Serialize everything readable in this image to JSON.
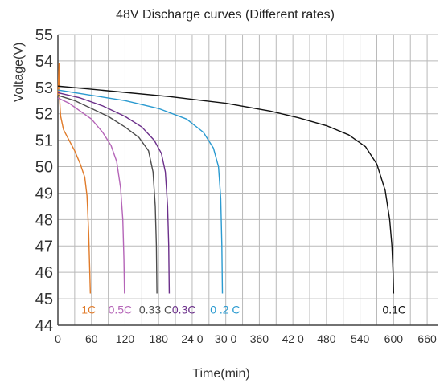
{
  "chart_data": {
    "type": "line",
    "title": "48V Discharge curves (Different rates)",
    "xlabel": "Time(min)",
    "ylabel": "Voltage(V)",
    "xlim": [
      0,
      680
    ],
    "ylim": [
      44,
      55
    ],
    "x_tick_labels": [
      "0",
      "60",
      "120",
      "180",
      "24 0",
      "30 0",
      "360",
      "42 0",
      "480",
      "540",
      "600",
      "660"
    ],
    "x_tick_values": [
      0,
      60,
      120,
      180,
      240,
      300,
      360,
      420,
      480,
      540,
      600,
      660
    ],
    "y_tick_labels": [
      "44",
      "45",
      "46",
      "47",
      "48",
      "49",
      "50",
      "51",
      "52",
      "53",
      "54",
      "55"
    ],
    "y_tick_values": [
      44,
      45,
      46,
      47,
      48,
      49,
      50,
      51,
      52,
      53,
      54,
      55
    ],
    "x_grid_step": 30,
    "grid": true,
    "series": [
      {
        "name": "1C",
        "color": "#e07b2a",
        "points": [
          [
            0,
            52.7
          ],
          [
            2,
            53.9
          ],
          [
            3,
            52.6
          ],
          [
            4,
            52.2
          ],
          [
            5,
            51.9
          ],
          [
            6,
            51.8
          ],
          [
            10,
            51.4
          ],
          [
            20,
            51.0
          ],
          [
            30,
            50.6
          ],
          [
            40,
            50.1
          ],
          [
            48,
            49.6
          ],
          [
            52,
            48.9
          ],
          [
            55,
            47.5
          ],
          [
            57,
            46.0
          ],
          [
            58,
            45.2
          ]
        ]
      },
      {
        "name": "0.5C",
        "color": "#b565b8",
        "points": [
          [
            0,
            52.6
          ],
          [
            20,
            52.4
          ],
          [
            40,
            52.1
          ],
          [
            60,
            51.8
          ],
          [
            80,
            51.3
          ],
          [
            95,
            50.8
          ],
          [
            105,
            50.2
          ],
          [
            112,
            49.2
          ],
          [
            116,
            48.0
          ],
          [
            118,
            46.5
          ],
          [
            119,
            45.2
          ]
        ]
      },
      {
        "name": "0.33 C",
        "color": "#4d4d4d",
        "points": [
          [
            0,
            52.7
          ],
          [
            30,
            52.5
          ],
          [
            60,
            52.2
          ],
          [
            90,
            51.9
          ],
          [
            120,
            51.5
          ],
          [
            145,
            51.1
          ],
          [
            162,
            50.6
          ],
          [
            170,
            49.8
          ],
          [
            174,
            48.5
          ],
          [
            176,
            47.0
          ],
          [
            177,
            45.2
          ]
        ]
      },
      {
        "name": "0.3C",
        "color": "#6b2f8a",
        "points": [
          [
            0,
            52.8
          ],
          [
            40,
            52.6
          ],
          [
            80,
            52.3
          ],
          [
            120,
            51.9
          ],
          [
            150,
            51.5
          ],
          [
            172,
            51.0
          ],
          [
            185,
            50.5
          ],
          [
            192,
            49.8
          ],
          [
            196,
            48.5
          ],
          [
            198,
            47.0
          ],
          [
            199,
            45.2
          ]
        ]
      },
      {
        "name": "0 .2 C",
        "color": "#2a9ad0",
        "points": [
          [
            0,
            52.9
          ],
          [
            60,
            52.7
          ],
          [
            120,
            52.5
          ],
          [
            180,
            52.2
          ],
          [
            230,
            51.8
          ],
          [
            260,
            51.3
          ],
          [
            278,
            50.7
          ],
          [
            287,
            50.0
          ],
          [
            291,
            48.8
          ],
          [
            293,
            47.0
          ],
          [
            294,
            45.2
          ]
        ]
      },
      {
        "name": "0.1C",
        "color": "#111111",
        "points": [
          [
            0,
            53.05
          ],
          [
            100,
            52.85
          ],
          [
            200,
            52.65
          ],
          [
            300,
            52.4
          ],
          [
            380,
            52.1
          ],
          [
            430,
            51.85
          ],
          [
            480,
            51.55
          ],
          [
            520,
            51.2
          ],
          [
            550,
            50.75
          ],
          [
            570,
            50.1
          ],
          [
            585,
            49.1
          ],
          [
            593,
            48.0
          ],
          [
            597,
            47.0
          ],
          [
            599,
            46.0
          ],
          [
            600,
            45.2
          ]
        ]
      }
    ],
    "series_labels": [
      {
        "text": "1C",
        "x": 42,
        "y": 44.6,
        "color": "#e07b2a"
      },
      {
        "text": "0.5C",
        "x": 90,
        "y": 44.6,
        "color": "#b565b8"
      },
      {
        "text": "0.33 C",
        "x": 145,
        "y": 44.6,
        "color": "#4d4d4d"
      },
      {
        "text": "0.3C",
        "x": 204,
        "y": 44.6,
        "color": "#6b2f8a"
      },
      {
        "text": "0 .2 C",
        "x": 272,
        "y": 44.6,
        "color": "#2a9ad0"
      },
      {
        "text": "0.1C",
        "x": 580,
        "y": 44.6,
        "color": "#111111"
      }
    ]
  }
}
